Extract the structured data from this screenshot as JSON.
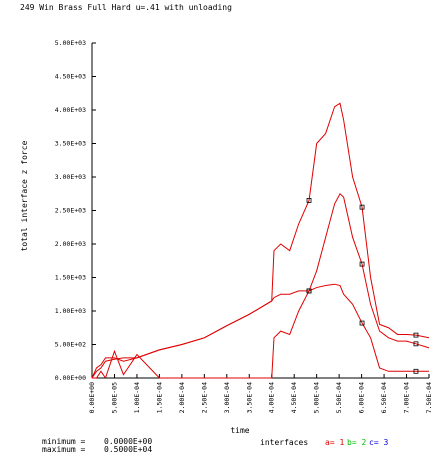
{
  "chart_data": {
    "type": "line",
    "title": "249 Win Brass Full Hard u=.41 with unloading",
    "x_label": "time",
    "y_label": "total interface z force",
    "x": [
      0,
      1e-05,
      2e-05,
      3e-05,
      5e-05,
      7e-05,
      0.0001,
      0.00015,
      0.0002,
      0.00025,
      0.0003,
      0.00035,
      0.0004,
      0.000405,
      0.00042,
      0.00044,
      0.00046,
      0.000483,
      0.0005,
      0.00052,
      0.00054,
      0.000552,
      0.00056,
      0.00058,
      0.000601,
      0.00062,
      0.00064,
      0.00066,
      0.00068,
      0.0007,
      0.000721,
      0.00075
    ],
    "series": [
      {
        "name": "a= 1",
        "color": "#e00000",
        "label_color": "#e00000",
        "values": [
          0,
          150,
          200,
          300,
          300,
          250,
          300,
          420,
          500,
          600,
          780,
          950,
          1150,
          1900,
          2000,
          1900,
          2300,
          2650,
          3500,
          3650,
          4050,
          4100,
          3850,
          3000,
          2550,
          1500,
          800,
          750,
          650,
          650,
          640,
          600
        ]
      },
      {
        "name": "b= 2",
        "color": "#e00000",
        "label_color": "#00c000",
        "values": [
          0,
          100,
          150,
          250,
          280,
          300,
          300,
          420,
          500,
          600,
          780,
          950,
          1150,
          1200,
          1250,
          1250,
          1300,
          1300,
          1600,
          2100,
          2600,
          2750,
          2700,
          2100,
          1700,
          1100,
          700,
          600,
          550,
          550,
          510,
          450
        ]
      },
      {
        "name": "c= 3",
        "color": "#e00000",
        "label_color": "#0000e0",
        "values": [
          0,
          0,
          100,
          0,
          400,
          50,
          350,
          0,
          0,
          0,
          0,
          0,
          0,
          600,
          700,
          650,
          1000,
          1300,
          1350,
          1380,
          1400,
          1380,
          1250,
          1100,
          820,
          600,
          150,
          100,
          100,
          100,
          100,
          100
        ]
      }
    ],
    "legend_title": "interfaces",
    "stats": [
      {
        "label": "minimum =",
        "value": "0.0000E+00"
      },
      {
        "label": "maximum =",
        "value": "0.5000E+04"
      }
    ],
    "xlim": [
      0,
      0.00075
    ],
    "ylim": [
      0,
      5000
    ],
    "xticks": [
      {
        "value": 0,
        "label": "0.00E+00"
      },
      {
        "value": 5e-05,
        "label": "5.00E-05"
      },
      {
        "value": 0.0001,
        "label": "1.00E-04"
      },
      {
        "value": 0.00015,
        "label": "1.50E-04"
      },
      {
        "value": 0.0002,
        "label": "2.00E-04"
      },
      {
        "value": 0.00025,
        "label": "2.50E-04"
      },
      {
        "value": 0.0003,
        "label": "3.00E-04"
      },
      {
        "value": 0.00035,
        "label": "3.50E-04"
      },
      {
        "value": 0.0004,
        "label": "4.00E-04"
      },
      {
        "value": 0.00045,
        "label": "4.50E-04"
      },
      {
        "value": 0.0005,
        "label": "5.00E-04"
      },
      {
        "value": 0.00055,
        "label": "5.50E-04"
      },
      {
        "value": 0.0006,
        "label": "6.00E-04"
      },
      {
        "value": 0.00065,
        "label": "6.50E-04"
      },
      {
        "value": 0.0007,
        "label": "7.00E-04"
      },
      {
        "value": 0.00075,
        "label": "7.50E-04"
      }
    ],
    "yticks": [
      {
        "value": 0,
        "label": "0.00E+00"
      },
      {
        "value": 500,
        "label": "5.00E+02"
      },
      {
        "value": 1000,
        "label": "1.00E+03"
      },
      {
        "value": 1500,
        "label": "1.50E+03"
      },
      {
        "value": 2000,
        "label": "2.00E+03"
      },
      {
        "value": 2500,
        "label": "2.50E+03"
      },
      {
        "value": 3000,
        "label": "3.00E+03"
      },
      {
        "value": 3500,
        "label": "3.50E+03"
      },
      {
        "value": 4000,
        "label": "4.00E+03"
      },
      {
        "value": 4500,
        "label": "4.50E+03"
      },
      {
        "value": 5000,
        "label": "5.00E+03"
      }
    ],
    "grid": false
  }
}
